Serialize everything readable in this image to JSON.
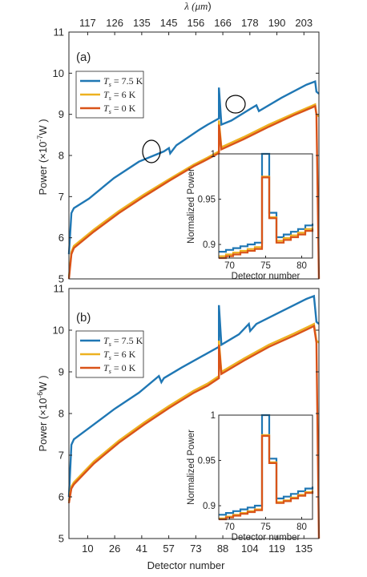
{
  "figure": {
    "top_axis_label_prefix": "λ (",
    "top_axis_label_unit": "μm",
    "top_axis_label_suffix": ")",
    "bottom_axis_label": "Detector number"
  },
  "colors": {
    "blue": "#1f77b4",
    "yellow": "#edb120",
    "orange": "#d95319"
  },
  "chart_data": [
    {
      "type": "line",
      "panel_label": "(a)",
      "ylabel_prefix": "Power (×10",
      "ylabel_exp": "-7",
      "ylabel_suffix": "W )",
      "ylim": [
        5,
        11
      ],
      "yticks": [
        5,
        6,
        7,
        8,
        9,
        10,
        11
      ],
      "top_xticks": [
        "117",
        "126",
        "135",
        "145",
        "156",
        "166",
        "178",
        "190",
        "203"
      ],
      "bottom_xticks": [],
      "grid": false,
      "legend_position": "top-left",
      "series": [
        {
          "name_var": "T",
          "name_sub": "s",
          "name_val": " = 7.5 K",
          "color": "#1f77b4",
          "x": [
            0,
            0.01,
            0.02,
            0.08,
            0.18,
            0.28,
            0.38,
            0.4,
            0.405,
            0.43,
            0.52,
            0.555,
            0.6,
            0.6,
            0.61,
            0.65,
            0.73,
            0.75,
            0.76,
            0.85,
            0.95,
            0.985,
            0.99,
            1.0
          ],
          "y": [
            5.6,
            6.6,
            6.72,
            6.95,
            7.45,
            7.85,
            8.1,
            8.18,
            8.05,
            8.25,
            8.62,
            8.75,
            8.9,
            9.65,
            8.75,
            8.85,
            9.15,
            9.22,
            9.08,
            9.4,
            9.72,
            9.8,
            9.55,
            9.5
          ]
        },
        {
          "name_var": "T",
          "name_sub": "s",
          "name_val": " = 6 K",
          "color": "#edb120",
          "x": [
            0,
            0.01,
            0.02,
            0.1,
            0.2,
            0.3,
            0.4,
            0.5,
            0.555,
            0.6,
            0.6,
            0.61,
            0.7,
            0.8,
            0.9,
            0.97,
            0.985,
            0.99,
            1.0
          ],
          "y": [
            5.05,
            5.65,
            5.8,
            6.2,
            6.65,
            7.05,
            7.42,
            7.78,
            7.95,
            8.1,
            8.85,
            8.2,
            8.45,
            8.75,
            9.02,
            9.2,
            9.24,
            9.0,
            8.95
          ]
        },
        {
          "name_var": "T",
          "name_sub": "s",
          "name_val": " = 0 K",
          "color": "#d95319",
          "x": [
            0,
            0.01,
            0.02,
            0.1,
            0.2,
            0.3,
            0.4,
            0.5,
            0.555,
            0.6,
            0.6,
            0.61,
            0.7,
            0.8,
            0.9,
            0.97,
            0.985,
            0.99,
            1.0
          ],
          "y": [
            5.0,
            5.6,
            5.75,
            6.15,
            6.6,
            7.0,
            7.38,
            7.74,
            7.91,
            8.06,
            8.75,
            8.15,
            8.4,
            8.7,
            8.98,
            9.16,
            9.2,
            9.0,
            5.0
          ]
        }
      ],
      "inset": {
        "ylabel": "Normalized Power",
        "xlabel": "Detector number",
        "xlim": [
          68.5,
          81.5
        ],
        "ylim": [
          0.885,
          1.0
        ],
        "xticks": [
          70,
          75,
          80
        ],
        "yticks": [
          0.9,
          0.95,
          1
        ],
        "ytick_labels": [
          "0.9",
          "0.95",
          "1"
        ],
        "series": [
          {
            "color": "#1f77b4",
            "x": [
              68.5,
              69.5,
              70.5,
              71.5,
              72.5,
              73.5,
              74.5,
              75.5,
              76.5,
              77.5,
              78.5,
              79.5,
              80.5,
              81.5
            ],
            "y": [
              0.892,
              0.894,
              0.896,
              0.898,
              0.9,
              0.902,
              1.0,
              0.935,
              0.908,
              0.911,
              0.914,
              0.917,
              0.921,
              0.923
            ]
          },
          {
            "color": "#edb120",
            "x": [
              68.5,
              69.5,
              70.5,
              71.5,
              72.5,
              73.5,
              74.5,
              75.5,
              76.5,
              77.5,
              78.5,
              79.5,
              80.5,
              81.5
            ],
            "y": [
              0.887,
              0.889,
              0.891,
              0.893,
              0.895,
              0.897,
              0.975,
              0.93,
              0.904,
              0.907,
              0.91,
              0.913,
              0.917,
              0.919
            ]
          },
          {
            "color": "#d95319",
            "x": [
              68.5,
              69.5,
              70.5,
              71.5,
              72.5,
              73.5,
              74.5,
              75.5,
              76.5,
              77.5,
              78.5,
              79.5,
              80.5,
              81.5
            ],
            "y": [
              0.885,
              0.887,
              0.889,
              0.891,
              0.893,
              0.895,
              0.974,
              0.929,
              0.902,
              0.905,
              0.908,
              0.911,
              0.915,
              0.917
            ]
          }
        ]
      }
    },
    {
      "type": "line",
      "panel_label": "(b)",
      "ylabel_prefix": "Power (×10",
      "ylabel_exp": "-6",
      "ylabel_suffix": "W )",
      "ylim": [
        5,
        11
      ],
      "yticks": [
        5,
        6,
        7,
        8,
        9,
        10,
        11
      ],
      "top_xticks": [],
      "bottom_xticks": [
        "10",
        "26",
        "41",
        "57",
        "73",
        "88",
        "104",
        "119",
        "135"
      ],
      "grid": false,
      "legend_position": "top-left",
      "series": [
        {
          "name_var": "T",
          "name_sub": "s",
          "name_val": " = 7.5 K",
          "color": "#1f77b4",
          "x": [
            0,
            0.01,
            0.02,
            0.08,
            0.18,
            0.28,
            0.36,
            0.37,
            0.38,
            0.45,
            0.555,
            0.6,
            0.6,
            0.61,
            0.68,
            0.72,
            0.725,
            0.75,
            0.85,
            0.95,
            0.98,
            0.99,
            1.0
          ],
          "y": [
            6.0,
            7.25,
            7.38,
            7.65,
            8.1,
            8.5,
            8.9,
            8.75,
            8.85,
            9.1,
            9.45,
            9.6,
            10.6,
            9.65,
            9.9,
            10.15,
            9.98,
            10.15,
            10.45,
            10.75,
            10.82,
            10.2,
            10.15
          ]
        },
        {
          "name_var": "T",
          "name_sub": "s",
          "name_val": " = 6 K",
          "color": "#edb120",
          "x": [
            0,
            0.01,
            0.02,
            0.1,
            0.2,
            0.3,
            0.4,
            0.5,
            0.555,
            0.6,
            0.6,
            0.61,
            0.7,
            0.8,
            0.9,
            0.97,
            0.98,
            0.99,
            1.0
          ],
          "y": [
            5.9,
            6.25,
            6.35,
            6.85,
            7.35,
            7.78,
            8.18,
            8.55,
            8.72,
            8.9,
            9.75,
            9.0,
            9.32,
            9.65,
            9.92,
            10.12,
            10.15,
            9.75,
            9.7
          ]
        },
        {
          "name_var": "T",
          "name_sub": "s",
          "name_val": " = 0 K",
          "color": "#d95319",
          "x": [
            0,
            0.01,
            0.02,
            0.1,
            0.2,
            0.3,
            0.4,
            0.5,
            0.555,
            0.6,
            0.6,
            0.61,
            0.7,
            0.8,
            0.9,
            0.97,
            0.98,
            0.99,
            1.0
          ],
          "y": [
            5.85,
            6.2,
            6.3,
            6.8,
            7.3,
            7.73,
            8.13,
            8.5,
            8.67,
            8.85,
            9.65,
            8.95,
            9.27,
            9.6,
            9.87,
            10.07,
            10.1,
            9.7,
            5.0
          ]
        }
      ],
      "inset": {
        "ylabel": "Normalized Power",
        "xlabel": "Detector number",
        "xlim": [
          68.5,
          81.5
        ],
        "ylim": [
          0.885,
          1.0
        ],
        "xticks": [
          70,
          75,
          80
        ],
        "yticks": [
          0.9,
          0.95,
          1
        ],
        "ytick_labels": [
          "0.9",
          "0.95",
          "1"
        ],
        "series": [
          {
            "color": "#1f77b4",
            "x": [
              68.5,
              69.5,
              70.5,
              71.5,
              72.5,
              73.5,
              74.5,
              75.5,
              76.5,
              77.5,
              78.5,
              79.5,
              80.5,
              81.5
            ],
            "y": [
              0.89,
              0.892,
              0.894,
              0.896,
              0.898,
              0.9,
              1.0,
              0.952,
              0.908,
              0.91,
              0.913,
              0.916,
              0.919,
              0.921
            ]
          },
          {
            "color": "#edb120",
            "x": [
              68.5,
              69.5,
              70.5,
              71.5,
              72.5,
              73.5,
              74.5,
              75.5,
              76.5,
              77.5,
              78.5,
              79.5,
              80.5,
              81.5
            ],
            "y": [
              0.886,
              0.888,
              0.89,
              0.892,
              0.894,
              0.896,
              0.978,
              0.948,
              0.904,
              0.906,
              0.909,
              0.912,
              0.915,
              0.917
            ]
          },
          {
            "color": "#d95319",
            "x": [
              68.5,
              69.5,
              70.5,
              71.5,
              72.5,
              73.5,
              74.5,
              75.5,
              76.5,
              77.5,
              78.5,
              79.5,
              80.5,
              81.5
            ],
            "y": [
              0.885,
              0.887,
              0.889,
              0.891,
              0.893,
              0.895,
              0.977,
              0.947,
              0.903,
              0.905,
              0.908,
              0.911,
              0.914,
              0.916
            ]
          }
        ]
      }
    }
  ]
}
